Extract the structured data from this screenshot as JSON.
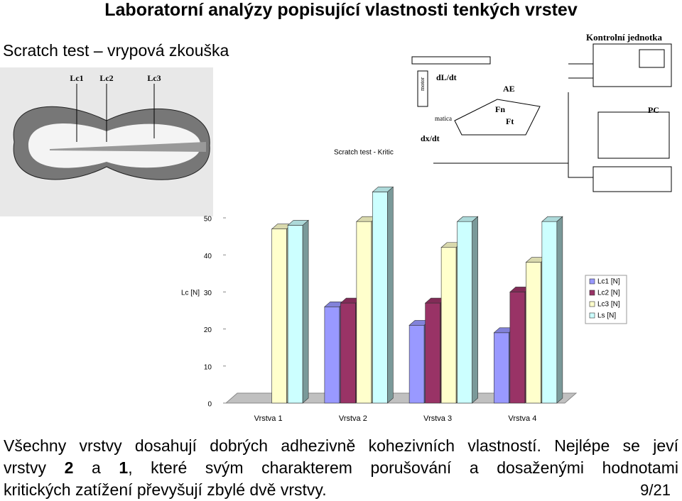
{
  "header": {
    "title": "Laboratorní analýzy popisující vlastnosti tenkých vrstev",
    "subtitle": "Scratch test – vrypová zkouška"
  },
  "scratch_image": {
    "labels": [
      "Lc1",
      "Lc2",
      "Lc3"
    ]
  },
  "apparatus": {
    "labels": [
      "Kontrolní jednotka",
      "dL/dt",
      "AE",
      "Fn",
      "Ft",
      "dx/dt",
      "PC",
      "motor",
      "matica"
    ]
  },
  "chart_data": {
    "type": "bar3d",
    "title": "Scratch test - Kritic",
    "y_label": "Lc [N]",
    "categories": [
      "Vrstva 1",
      "Vrstva 2",
      "Vrstva 3",
      "Vrstva 4"
    ],
    "series": [
      {
        "name": "Lc1 [N]",
        "color": "#9999ff",
        "values": [
          null,
          26,
          21,
          19
        ]
      },
      {
        "name": "Lc2 [N]",
        "color": "#993366",
        "values": [
          null,
          27,
          27,
          30
        ]
      },
      {
        "name": "Lc3 [N]",
        "color": "#ffffcc",
        "values": [
          47,
          49,
          42,
          38
        ]
      },
      {
        "name": "Ls [N]",
        "color": "#ccffff",
        "values": [
          48,
          57,
          49,
          49
        ]
      }
    ],
    "ylim": [
      0,
      60
    ],
    "yticks": [
      0,
      10,
      20,
      30,
      40,
      50
    ],
    "legend": "right"
  },
  "body": {
    "lines": [
      [
        "Všechny vrstvy dosahují dobrých adhezivně kohezivních vlastností. Nejlépe se jeví"
      ],
      [
        "vrstvy ",
        "2",
        " a ",
        "1",
        ", které svým charakterem porušování a dosaženými hodnotami"
      ],
      [
        "kritických zatížení převyšují zbylé dvě vrstvy."
      ]
    ]
  },
  "page_number": "9/21"
}
